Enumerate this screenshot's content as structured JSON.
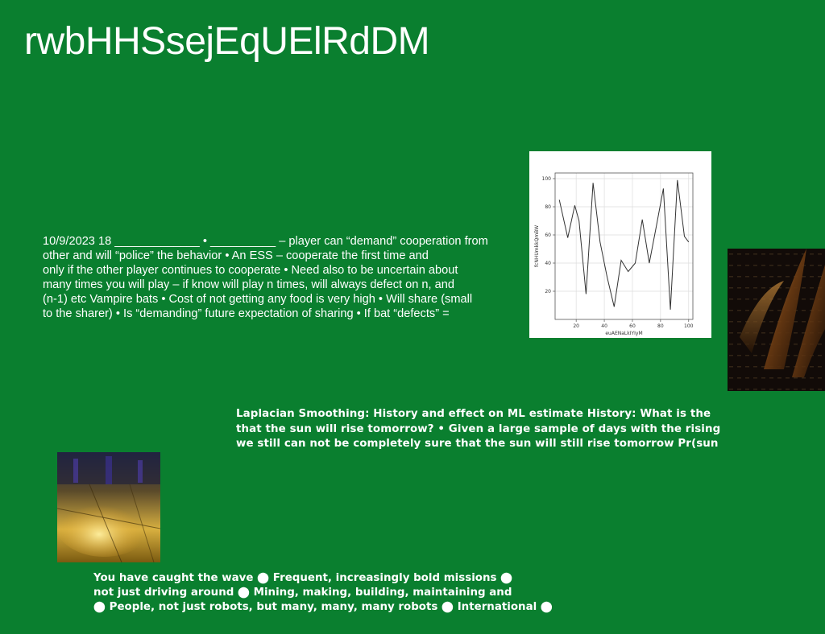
{
  "slide": {
    "title": "rwbHHSsejEqUElRdDM",
    "bat_text": {
      "lines": [
        "10/9/2023 18 _____________ • __________ – player can “demand” cooperation from",
        "other  and will “police” the behavior • An ESS – cooperate the first time and",
        "only if the other player continues to cooperate • Need also to be uncertain about",
        "many times you will play – if know will play n times, will always defect on n, and",
        "(n-1) etc Vampire bats • Cost of not getting any food is very  high • Will share (small",
        "to the sharer) • Is “demanding” future expectation of sharing • If bat “defects” ="
      ]
    },
    "laplace_text": {
      "lines": [
        "Laplacian Smoothing: History and effect on ML estimate History: What is the",
        "that the sun will rise tomorrow? • Given a large sample of days with the rising",
        "we still can not be completely sure that the sun will still rise tomorrow Pr(sun"
      ]
    },
    "wave_text": {
      "lines": [
        "You have caught the wave ⬤ Frequent, increasingly bold missions ⬤",
        "not just driving around ⬤ Mining, making, building, maintaining and",
        "⬤ People, not just robots, but many, many, many robots ⬤ International ⬤"
      ]
    },
    "images": {
      "dark_photo": "dark abstract golden curves",
      "gold_photo": "golden reflective floor"
    }
  },
  "chart_data": {
    "type": "line",
    "xlabel": "euAENaLkIYIyM",
    "ylabel": "fcNHUmkkQmBW",
    "xlim": [
      5,
      103
    ],
    "ylim": [
      0,
      104
    ],
    "xticks": [
      20,
      40,
      60,
      80,
      100
    ],
    "yticks": [
      20,
      40,
      60,
      80,
      100
    ],
    "grid": true,
    "color": "#333333",
    "x": [
      8,
      14,
      19,
      22,
      27,
      32,
      37,
      42,
      47,
      52,
      57,
      62,
      67,
      72,
      77,
      82,
      87,
      92,
      97,
      100
    ],
    "y": [
      85,
      58,
      81,
      70,
      18,
      97,
      55,
      30,
      9,
      42,
      34,
      40,
      71,
      40,
      66,
      93,
      7,
      99,
      59,
      55
    ]
  }
}
